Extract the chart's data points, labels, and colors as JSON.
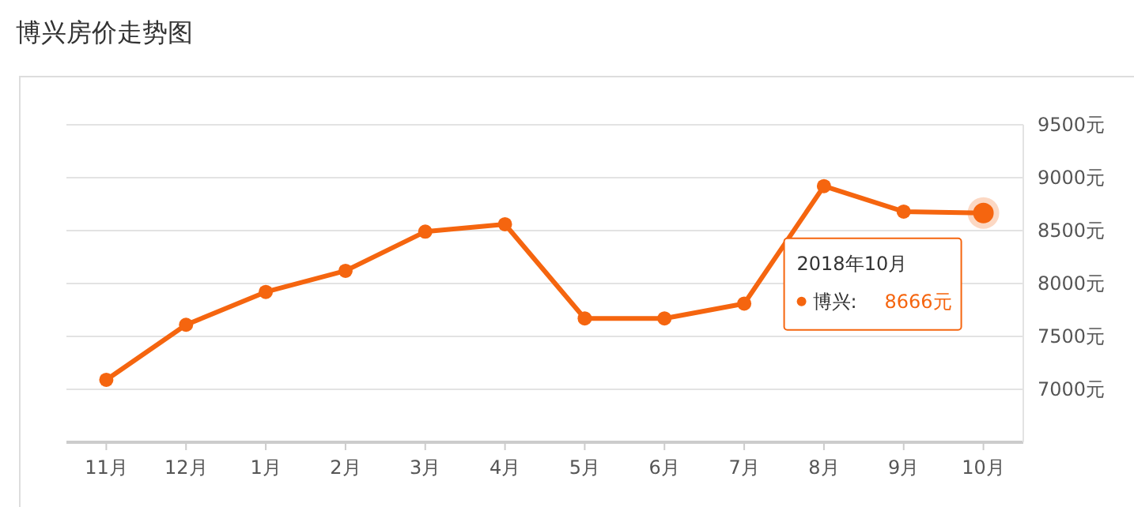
{
  "chart_data": {
    "type": "line",
    "title": "博兴房价走势图",
    "categories": [
      "11月",
      "12月",
      "1月",
      "2月",
      "3月",
      "4月",
      "5月",
      "6月",
      "7月",
      "8月",
      "9月",
      "10月"
    ],
    "series": [
      {
        "color": "#f5650f",
        "values": [
          7090,
          7610,
          7920,
          8120,
          8490,
          8560,
          7670,
          7670,
          7810,
          8920,
          8680,
          8666
        ]
      }
    ],
    "ylim": [
      6500,
      9500
    ],
    "yticks": [
      {
        "value": 6500,
        "label": null
      },
      {
        "value": 7000,
        "label": "7000元"
      },
      {
        "value": 7500,
        "label": "7500元"
      },
      {
        "value": 8000,
        "label": "8000元"
      },
      {
        "value": 8500,
        "label": "8500元"
      },
      {
        "value": 9000,
        "label": "9000元"
      },
      {
        "value": 9500,
        "label": "9500元"
      }
    ],
    "grid": "y",
    "marker": "circle",
    "line_style": "solid",
    "annotations": [
      "2018年10月",
      "博兴:",
      "8666元"
    ]
  }
}
